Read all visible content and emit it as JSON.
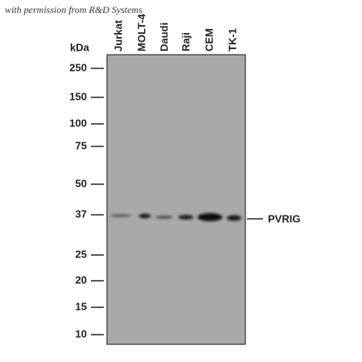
{
  "credit": "with permission from R&D Systems",
  "axis_label": "kDa",
  "lanes": [
    "Jurkat",
    "MOLT-4",
    "Daudi",
    "Raji",
    "CEM",
    "TK-1"
  ],
  "markers": [
    250,
    150,
    100,
    75,
    50,
    37,
    25,
    20,
    15,
    10
  ],
  "band_label": "PVRIG"
}
